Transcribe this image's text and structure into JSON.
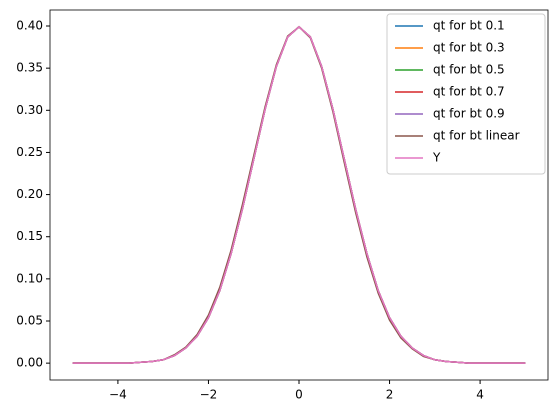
{
  "chart_data": {
    "type": "line",
    "x": [
      -5,
      -4.75,
      -4.5,
      -4.25,
      -4,
      -3.75,
      -3.5,
      -3.25,
      -3,
      -2.75,
      -2.5,
      -2.25,
      -2,
      -1.75,
      -1.5,
      -1.25,
      -1,
      -0.75,
      -0.5,
      -0.25,
      0,
      0.25,
      0.5,
      0.75,
      1,
      1.25,
      1.5,
      1.75,
      2,
      2.25,
      2.5,
      2.75,
      3,
      3.25,
      3.5,
      3.75,
      4,
      4.25,
      4.5,
      4.75,
      5
    ],
    "series": [
      {
        "name": "qt for bt 0.1",
        "color": "#1f77b4",
        "values": [
          0,
          0,
          0,
          0,
          0,
          0,
          0.001,
          0.002,
          0.004,
          0.009,
          0.018,
          0.032,
          0.054,
          0.086,
          0.13,
          0.183,
          0.242,
          0.301,
          0.352,
          0.387,
          0.399,
          0.387,
          0.352,
          0.301,
          0.242,
          0.183,
          0.13,
          0.086,
          0.054,
          0.032,
          0.018,
          0.009,
          0.004,
          0.002,
          0.001,
          0,
          0,
          0,
          0,
          0,
          0
        ]
      },
      {
        "name": "qt for bt 0.3",
        "color": "#ff7f0e",
        "values": [
          0,
          0,
          0,
          0,
          0,
          0,
          0.001,
          0.002,
          0.004,
          0.009,
          0.018,
          0.032,
          0.054,
          0.086,
          0.13,
          0.183,
          0.242,
          0.301,
          0.352,
          0.387,
          0.399,
          0.387,
          0.352,
          0.301,
          0.242,
          0.183,
          0.13,
          0.086,
          0.054,
          0.032,
          0.018,
          0.009,
          0.004,
          0.002,
          0.001,
          0,
          0,
          0,
          0,
          0,
          0
        ]
      },
      {
        "name": "qt for bt 0.5",
        "color": "#2ca02c",
        "values": [
          0,
          0,
          0,
          0,
          0,
          0,
          0.001,
          0.002,
          0.004,
          0.009,
          0.018,
          0.032,
          0.054,
          0.086,
          0.13,
          0.183,
          0.242,
          0.301,
          0.352,
          0.387,
          0.399,
          0.387,
          0.352,
          0.301,
          0.242,
          0.183,
          0.13,
          0.086,
          0.054,
          0.032,
          0.018,
          0.009,
          0.004,
          0.002,
          0.001,
          0,
          0,
          0,
          0,
          0,
          0
        ]
      },
      {
        "name": "qt for bt 0.7",
        "color": "#d62728",
        "values": [
          0,
          0,
          0,
          0,
          0,
          0,
          0.001,
          0.002,
          0.004,
          0.009,
          0.018,
          0.032,
          0.054,
          0.086,
          0.13,
          0.183,
          0.242,
          0.301,
          0.352,
          0.387,
          0.399,
          0.387,
          0.352,
          0.301,
          0.242,
          0.183,
          0.13,
          0.086,
          0.054,
          0.032,
          0.018,
          0.009,
          0.004,
          0.002,
          0.001,
          0,
          0,
          0,
          0,
          0,
          0
        ]
      },
      {
        "name": "qt for bt 0.9",
        "color": "#9467bd",
        "values": [
          0,
          0,
          0,
          0,
          0,
          0,
          0.001,
          0.002,
          0.004,
          0.009,
          0.018,
          0.032,
          0.054,
          0.086,
          0.13,
          0.183,
          0.242,
          0.301,
          0.352,
          0.387,
          0.399,
          0.387,
          0.352,
          0.301,
          0.242,
          0.183,
          0.13,
          0.086,
          0.054,
          0.032,
          0.018,
          0.009,
          0.004,
          0.002,
          0.001,
          0,
          0,
          0,
          0,
          0,
          0
        ]
      },
      {
        "name": "qt for bt linear",
        "color": "#8c564b",
        "values": [
          0,
          0,
          0,
          0,
          0,
          0,
          0.001,
          0.002,
          0.004,
          0.01,
          0.019,
          0.034,
          0.057,
          0.09,
          0.134,
          0.188,
          0.246,
          0.304,
          0.354,
          0.388,
          0.399,
          0.386,
          0.35,
          0.298,
          0.238,
          0.179,
          0.126,
          0.083,
          0.051,
          0.03,
          0.017,
          0.008,
          0.004,
          0.002,
          0.001,
          0,
          0,
          0,
          0,
          0,
          0
        ]
      },
      {
        "name": "Y",
        "color": "#e377c2",
        "values": [
          0,
          0,
          0,
          0,
          0,
          0,
          0.001,
          0.002,
          0.004,
          0.009,
          0.018,
          0.032,
          0.054,
          0.086,
          0.13,
          0.183,
          0.242,
          0.301,
          0.352,
          0.387,
          0.399,
          0.387,
          0.352,
          0.301,
          0.242,
          0.183,
          0.13,
          0.086,
          0.054,
          0.032,
          0.018,
          0.009,
          0.004,
          0.002,
          0.001,
          0,
          0,
          0,
          0,
          0,
          0
        ]
      }
    ],
    "xlim": [
      -5.5,
      5.5
    ],
    "xticks": [
      {
        "value": -4,
        "label": "−4"
      },
      {
        "value": -2,
        "label": "−2"
      },
      0,
      2,
      4
    ],
    "ylim": [
      -0.02,
      0.419
    ],
    "yticks": [
      {
        "value": 0,
        "label": "0.00"
      },
      {
        "value": 0.05,
        "label": "0.05"
      },
      {
        "value": 0.1,
        "label": "0.10"
      },
      {
        "value": 0.15,
        "label": "0.15"
      },
      {
        "value": 0.2,
        "label": "0.20"
      },
      {
        "value": 0.25,
        "label": "0.25"
      },
      {
        "value": 0.3,
        "label": "0.30"
      },
      {
        "value": 0.35,
        "label": "0.35"
      },
      {
        "value": 0.4,
        "label": "0.40"
      }
    ],
    "grid": false,
    "legend": "upper right"
  }
}
